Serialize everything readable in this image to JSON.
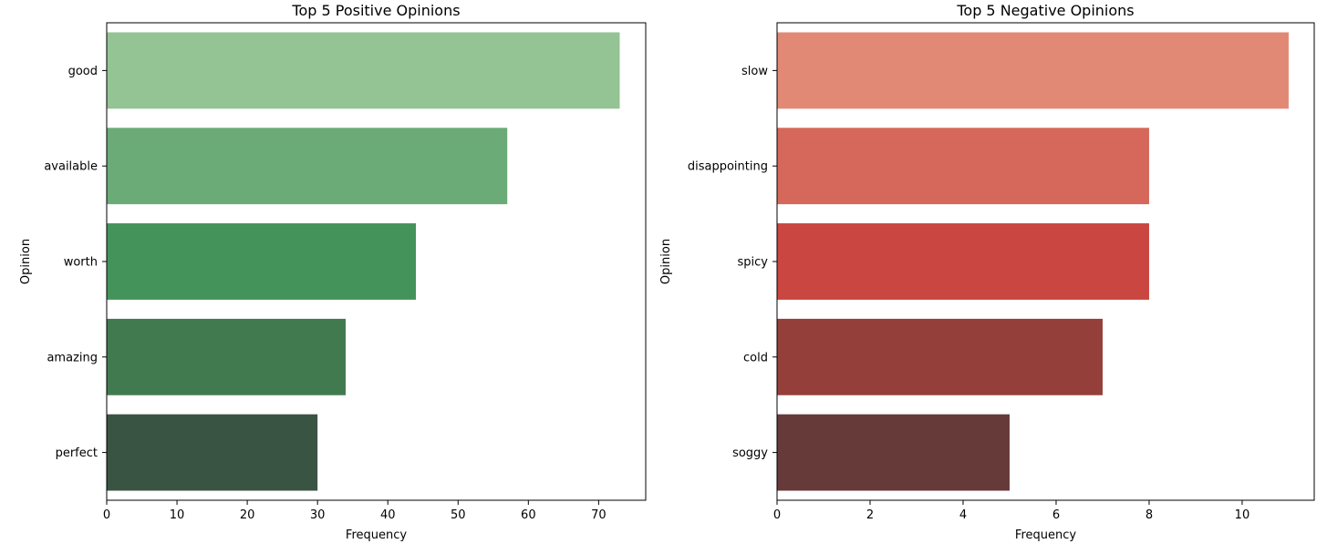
{
  "chart_data": [
    {
      "type": "bar",
      "orientation": "horizontal",
      "title": "Top 5 Positive Opinions",
      "xlabel": "Frequency",
      "ylabel": "Opinion",
      "categories": [
        "good",
        "available",
        "worth",
        "amazing",
        "perfect"
      ],
      "values": [
        73,
        57,
        44,
        34,
        30
      ],
      "xlim": [
        0,
        76.7
      ],
      "xticks": [
        0,
        10,
        20,
        30,
        40,
        50,
        60,
        70
      ],
      "colors": [
        "#94c394",
        "#6aab77",
        "#43935b",
        "#427a50",
        "#3a5443"
      ],
      "grid": false
    },
    {
      "type": "bar",
      "orientation": "horizontal",
      "title": "Top 5 Negative Opinions",
      "xlabel": "Frequency",
      "ylabel": "Opinion",
      "categories": [
        "slow",
        "disappointing",
        "spicy",
        "cold",
        "soggy"
      ],
      "values": [
        11,
        8,
        8,
        7,
        5
      ],
      "xlim": [
        0,
        11.55
      ],
      "xticks": [
        0,
        2,
        4,
        6,
        8,
        10
      ],
      "colors": [
        "#e28976",
        "#d6675b",
        "#ca4640",
        "#953f3a",
        "#663a38"
      ],
      "grid": false
    }
  ]
}
